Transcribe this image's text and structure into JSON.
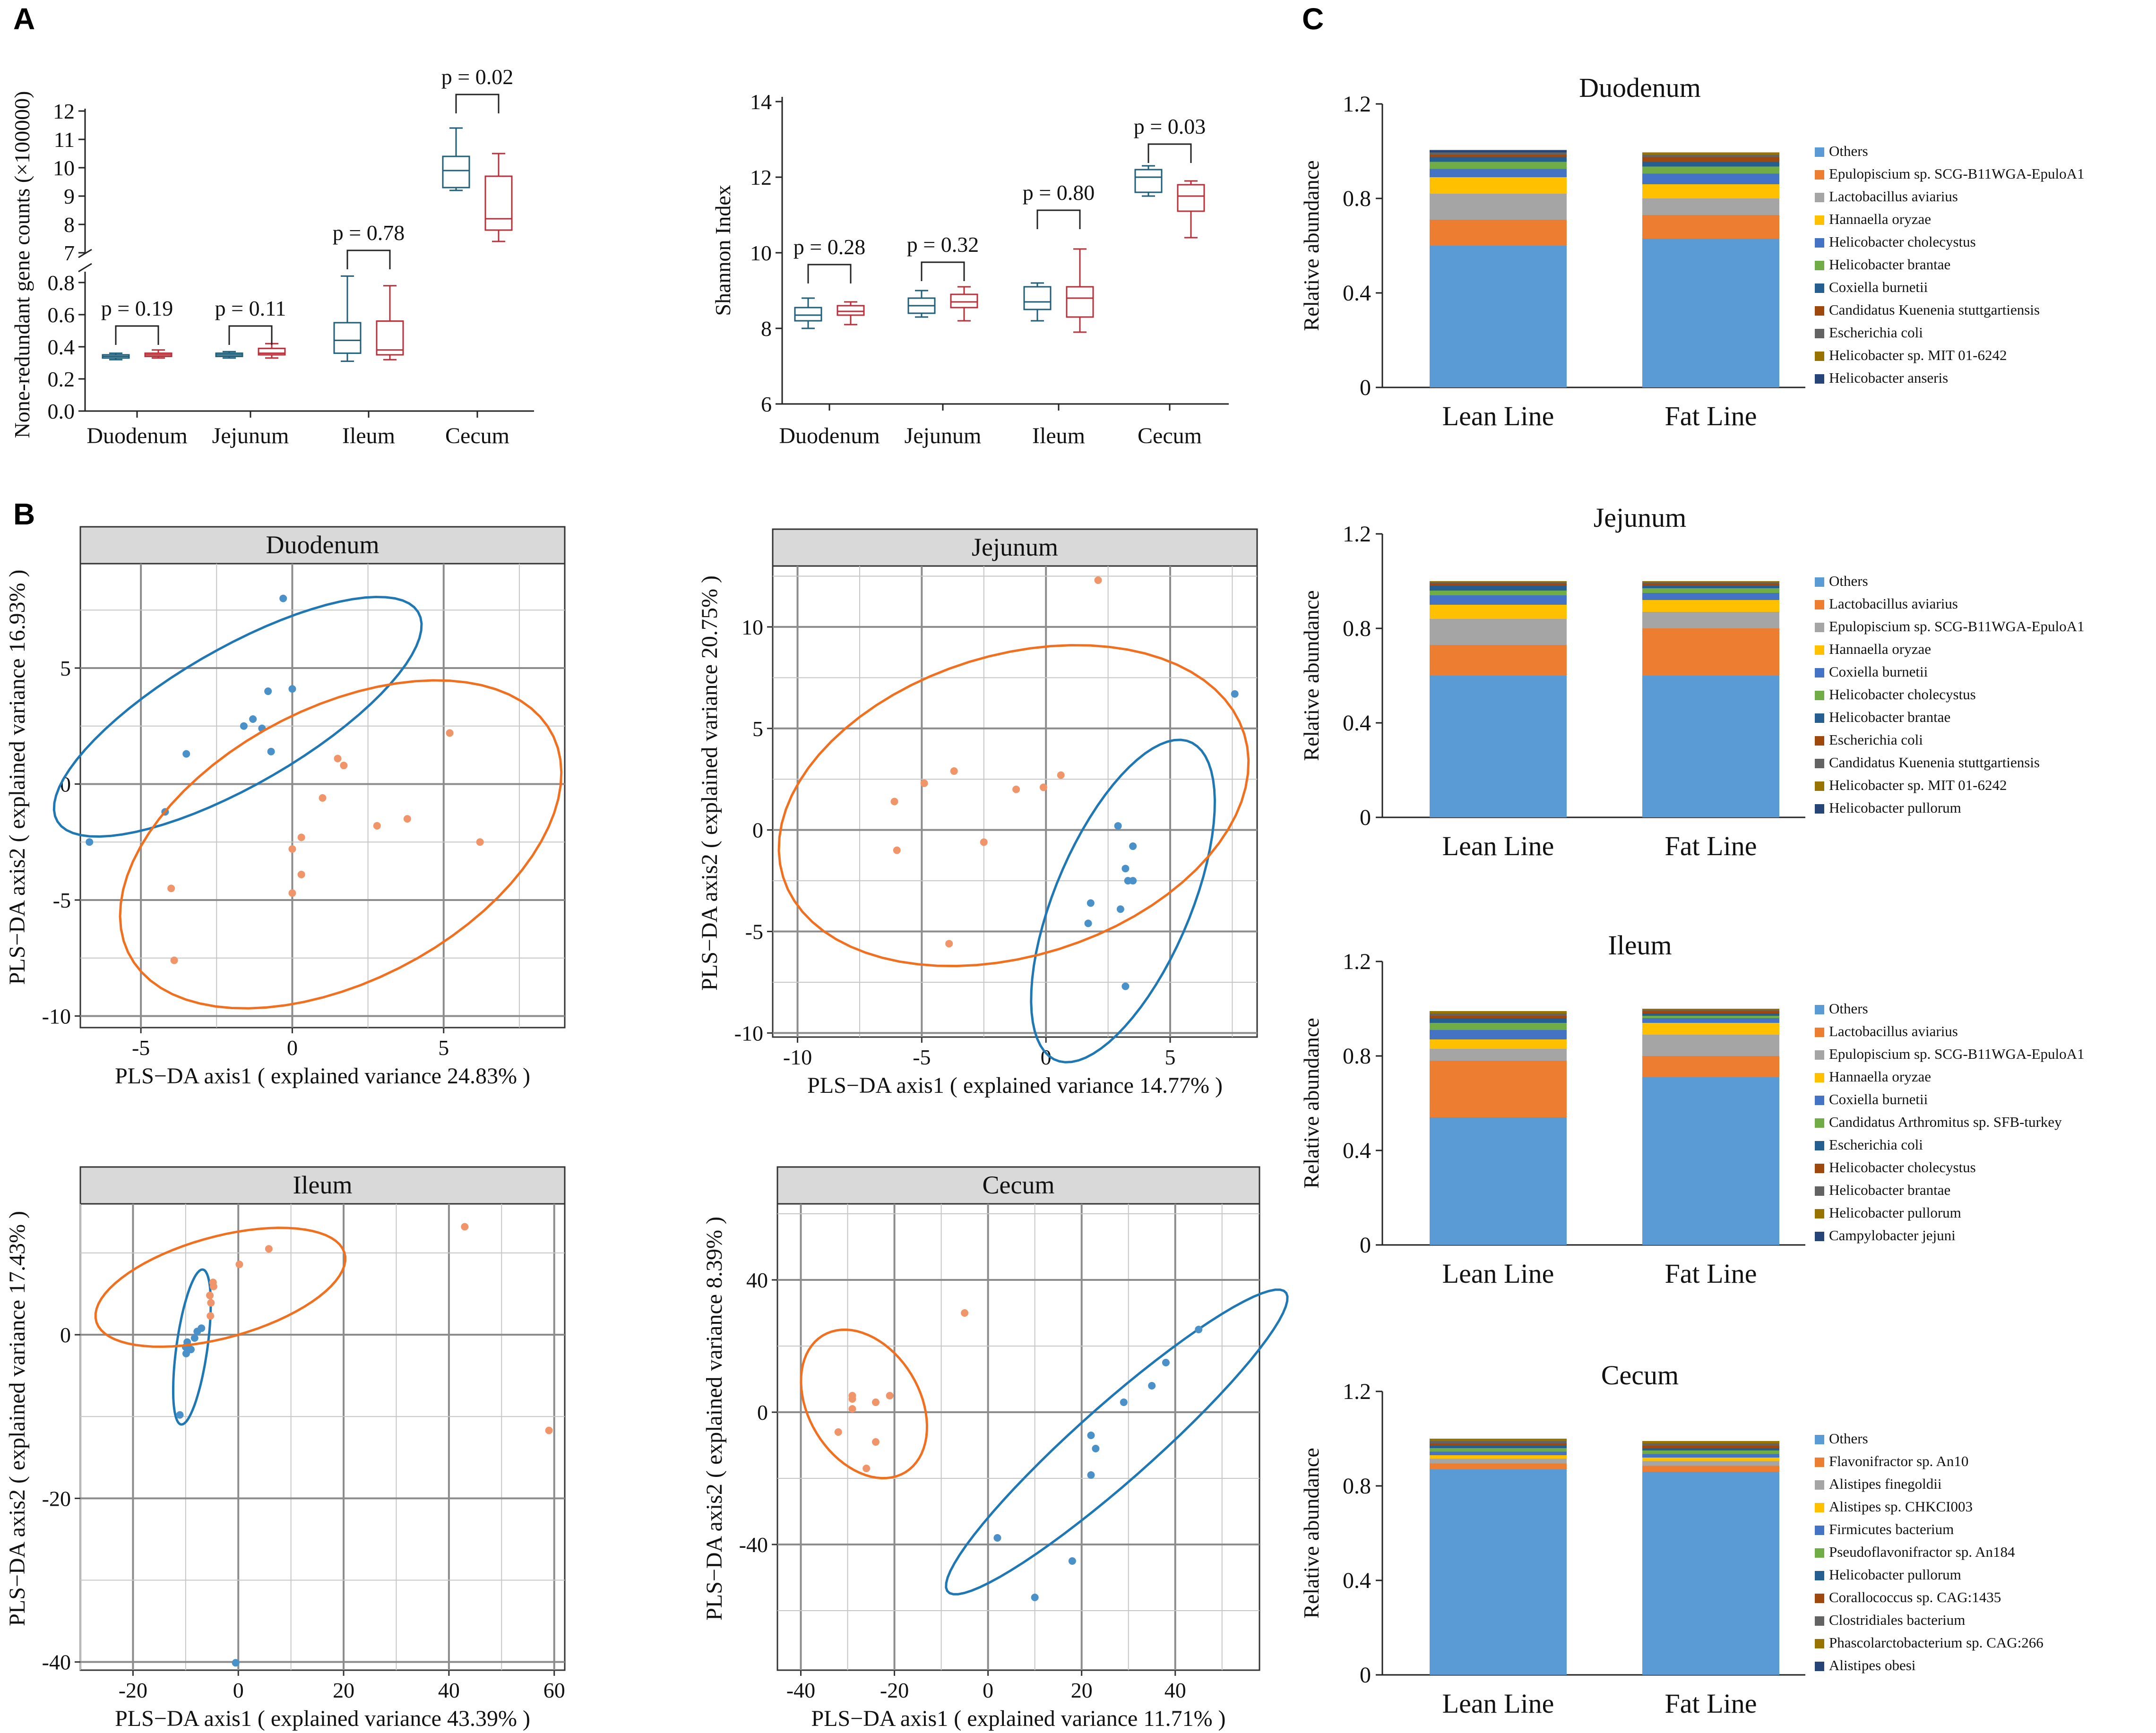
{
  "panel_labels": [
    "A",
    "B",
    "C"
  ],
  "colors": {
    "lean": "#1f5f7a",
    "fat": "#b8313a",
    "blue_pt": "#4a90c9",
    "orange_pt": "#f0956a",
    "blue_ell": "#1f77b4",
    "orange_ell": "#f07020"
  },
  "chart_data": [
    {
      "id": "gene_counts",
      "type": "boxplot",
      "ylabel": "None-redundant gene counts (×100000)",
      "categories": [
        "Duodenum",
        "Jejunum",
        "Ileum",
        "Cecum"
      ],
      "upper_axis": {
        "ylim": [
          7,
          12
        ],
        "ticks": [
          "7",
          "8",
          "9",
          "10",
          "11",
          "12"
        ]
      },
      "lower_axis": {
        "ylim": [
          0,
          0.9
        ],
        "ticks": [
          "0.0",
          "0.2",
          "0.4",
          "0.6",
          "0.8"
        ]
      },
      "series": [
        {
          "name": "Lean Line",
          "boxes": [
            [
              0.32,
              0.33,
              0.34,
              0.35,
              0.36
            ],
            [
              0.33,
              0.34,
              0.35,
              0.36,
              0.37
            ],
            [
              0.31,
              0.36,
              0.44,
              0.55,
              0.84
            ],
            [
              9.2,
              9.3,
              9.9,
              10.4,
              11.4
            ]
          ]
        },
        {
          "name": "Fat Line",
          "boxes": [
            [
              0.33,
              0.34,
              0.35,
              0.36,
              0.38
            ],
            [
              0.33,
              0.35,
              0.36,
              0.39,
              0.42
            ],
            [
              0.32,
              0.35,
              0.38,
              0.56,
              0.78
            ],
            [
              7.4,
              7.8,
              8.2,
              9.7,
              10.5
            ]
          ]
        }
      ],
      "pvalues": [
        "p = 0.19",
        "p = 0.11",
        "p = 0.78",
        "p = 0.02"
      ]
    },
    {
      "id": "shannon",
      "type": "boxplot",
      "ylabel": "Shannon Index",
      "categories": [
        "Duodenum",
        "Jejunum",
        "Ileum",
        "Cecum"
      ],
      "ylim": [
        6,
        14
      ],
      "ticks": [
        "6",
        "8",
        "10",
        "12",
        "14"
      ],
      "series": [
        {
          "name": "Lean Line",
          "boxes": [
            [
              8.0,
              8.2,
              8.35,
              8.55,
              8.8
            ],
            [
              8.3,
              8.4,
              8.6,
              8.8,
              9.0
            ],
            [
              8.2,
              8.5,
              8.7,
              9.1,
              9.2
            ],
            [
              11.5,
              11.6,
              12.0,
              12.2,
              12.3
            ]
          ]
        },
        {
          "name": "Fat Line",
          "boxes": [
            [
              8.1,
              8.35,
              8.45,
              8.6,
              8.7
            ],
            [
              8.2,
              8.55,
              8.7,
              8.9,
              9.1
            ],
            [
              7.9,
              8.3,
              8.8,
              9.1,
              10.1
            ],
            [
              10.4,
              11.1,
              11.5,
              11.8,
              11.9
            ]
          ]
        }
      ],
      "pvalues": [
        "p = 0.28",
        "p = 0.32",
        "p = 0.80",
        "p = 0.03"
      ]
    },
    {
      "id": "plsda_duodenum",
      "type": "scatter",
      "title": "Duodenum",
      "xlabel": "PLS−DA axis1 ( explained variance 24.83% )",
      "ylabel": "PLS−DA axis2 ( explained variance 16.93% )",
      "xlim": [
        -7,
        9
      ],
      "ylim": [
        -10.5,
        9.5
      ],
      "xticks": [
        "-5",
        "0",
        "5"
      ],
      "yticks": [
        "-10",
        "-5",
        "0",
        "5"
      ],
      "series": [
        {
          "name": "blue",
          "points": [
            [
              -0.3,
              8.0
            ],
            [
              -0.8,
              4.0
            ],
            [
              0,
              4.1
            ],
            [
              -1.3,
              2.8
            ],
            [
              -1.6,
              2.5
            ],
            [
              -1.0,
              2.4
            ],
            [
              -3.5,
              1.3
            ],
            [
              -0.7,
              1.4
            ],
            [
              -4.2,
              -1.2
            ],
            [
              -6.7,
              -2.5
            ]
          ],
          "ellipse": {
            "cx": -1.8,
            "cy": 2.9,
            "rx": 7.5,
            "ry": 2.7,
            "angle": 39
          }
        },
        {
          "name": "orange",
          "points": [
            [
              5.2,
              2.2
            ],
            [
              1.5,
              1.1
            ],
            [
              1.7,
              0.8
            ],
            [
              1.0,
              -0.6
            ],
            [
              3.8,
              -1.5
            ],
            [
              2.8,
              -1.8
            ],
            [
              0.3,
              -2.3
            ],
            [
              0,
              -2.8
            ],
            [
              6.2,
              -2.5
            ],
            [
              -4.0,
              -4.5
            ],
            [
              0.3,
              -3.9
            ],
            [
              0.0,
              -4.7
            ],
            [
              -3.9,
              -7.6
            ]
          ],
          "ellipse": {
            "cx": 1.6,
            "cy": -2.6,
            "rx": 8.6,
            "ry": 5.4,
            "angle": 43
          }
        }
      ]
    },
    {
      "id": "plsda_jejunum",
      "type": "scatter",
      "title": "Jejunum",
      "xlabel": "PLS−DA axis1 ( explained variance 14.77% )",
      "ylabel": "PLS−DA axis2 ( explained variance 20.75% )",
      "xlim": [
        -11,
        8.5
      ],
      "ylim": [
        -10.2,
        13
      ],
      "xticks": [
        "-10",
        "-5",
        "0",
        "5"
      ],
      "yticks": [
        "-10",
        "-5",
        "0",
        "5",
        "10"
      ],
      "series": [
        {
          "name": "blue",
          "points": [
            [
              7.6,
              6.7
            ],
            [
              2.9,
              0.2
            ],
            [
              3.5,
              -0.8
            ],
            [
              3.2,
              -1.9
            ],
            [
              3.3,
              -2.5
            ],
            [
              3.5,
              -2.5
            ],
            [
              1.8,
              -3.6
            ],
            [
              3.0,
              -3.9
            ],
            [
              1.7,
              -4.6
            ],
            [
              3.2,
              -7.7
            ]
          ],
          "ellipse": {
            "cx": 3.1,
            "cy": -3.5,
            "rx": 8.3,
            "ry": 2.8,
            "angle": 72
          }
        },
        {
          "name": "orange",
          "points": [
            [
              2.1,
              12.3
            ],
            [
              -6.1,
              1.4
            ],
            [
              -4.9,
              2.3
            ],
            [
              -3.7,
              2.9
            ],
            [
              -1.2,
              2.0
            ],
            [
              -0.1,
              2.1
            ],
            [
              0.6,
              2.7
            ],
            [
              -6.0,
              -1.0
            ],
            [
              -2.5,
              -0.6
            ],
            [
              -3.9,
              -5.6
            ]
          ],
          "ellipse": {
            "cx": -1.3,
            "cy": 1.2,
            "rx": 10.0,
            "ry": 7.2,
            "angle": 28
          }
        }
      ]
    },
    {
      "id": "plsda_ileum",
      "type": "scatter",
      "title": "Ileum",
      "xlabel": "PLS−DA axis1 ( explained variance 43.39% )",
      "ylabel": "PLS−DA axis2 ( explained variance 17.43% )",
      "xlim": [
        -30,
        62
      ],
      "ylim": [
        -41,
        16
      ],
      "xticks": [
        "-20",
        "0",
        "20",
        "40",
        "60"
      ],
      "yticks": [
        "-40",
        "-20",
        "0"
      ],
      "series": [
        {
          "name": "blue",
          "points": [
            [
              -7.0,
              0.8
            ],
            [
              -7.8,
              0.4
            ],
            [
              -8.3,
              -0.4
            ],
            [
              -9.7,
              -0.9
            ],
            [
              -10.0,
              -1.5
            ],
            [
              -9.0,
              -1.8
            ],
            [
              -9.9,
              -2.3
            ],
            [
              -11.1,
              -9.8
            ],
            [
              -0.5,
              -40.1
            ]
          ],
          "ellipse": {
            "cx": -8.8,
            "cy": -1.5,
            "rx": 9.7,
            "ry": 2.9,
            "angle": 77
          }
        },
        {
          "name": "orange",
          "points": [
            [
              43.0,
              13.2
            ],
            [
              5.8,
              10.5
            ],
            [
              0.2,
              8.6
            ],
            [
              -4.8,
              6.4
            ],
            [
              -4.7,
              5.9
            ],
            [
              -5.4,
              4.8
            ],
            [
              -5.2,
              3.9
            ],
            [
              -5.3,
              2.3
            ],
            [
              59.0,
              -11.7
            ]
          ],
          "ellipse": {
            "cx": -3.4,
            "cy": 5.8,
            "rx": 24.0,
            "ry": 6.3,
            "angle": 9
          }
        }
      ]
    },
    {
      "id": "plsda_cecum",
      "type": "scatter",
      "title": "Cecum",
      "xlabel": "PLS−DA axis1 ( explained variance 11.71% )",
      "ylabel": "PLS−DA axis2 ( explained variance 8.39% )",
      "xlim": [
        -45,
        58
      ],
      "ylim": [
        -78,
        63
      ],
      "xticks": [
        "-40",
        "-20",
        "0",
        "20",
        "40"
      ],
      "yticks": [
        "-40",
        "0",
        "40"
      ],
      "series": [
        {
          "name": "blue",
          "points": [
            [
              45,
              25
            ],
            [
              38,
              15
            ],
            [
              35,
              8
            ],
            [
              29,
              3
            ],
            [
              22,
              -7
            ],
            [
              23,
              -11
            ],
            [
              22,
              -19
            ],
            [
              2,
              -38
            ],
            [
              18,
              -45
            ],
            [
              10,
              -56
            ]
          ],
          "ellipse": {
            "cx": 27.5,
            "cy": -9.0,
            "rx": 58.0,
            "ry": 9.5,
            "angle": 52
          }
        },
        {
          "name": "orange",
          "points": [
            [
              -5,
              30
            ],
            [
              -29,
              5
            ],
            [
              -29,
              4
            ],
            [
              -21,
              5
            ],
            [
              -24,
              3
            ],
            [
              -29,
              1
            ],
            [
              -32,
              -6
            ],
            [
              -24,
              -9
            ],
            [
              -26,
              -17
            ]
          ],
          "ellipse": {
            "cx": -26.5,
            "cy": 2.5,
            "rx": 23.0,
            "ry": 12.5,
            "angle": 105
          }
        }
      ]
    },
    {
      "id": "abund_duodenum",
      "type": "stacked_bar",
      "title": "Duodenum",
      "ylabel": "Relative abundance",
      "ylim": [
        0,
        1.2
      ],
      "yticks": [
        "0",
        "0.4",
        "0.8",
        "1.2"
      ],
      "categories": [
        "Lean Line",
        "Fat Line"
      ],
      "legend": [
        "Others",
        "Epulopiscium sp. SCG-B11WGA-EpuloA1",
        "Lactobacillus aviarius",
        "Hannaella oryzae",
        "Helicobacter cholecystus",
        "Helicobacter brantae",
        "Coxiella burnetii",
        "Candidatus Kuenenia stuttgartiensis",
        "Escherichia coli",
        "Helicobacter sp. MIT 01-6242",
        "Helicobacter anseris"
      ],
      "series_values": [
        [
          0.6,
          0.63
        ],
        [
          0.11,
          0.1
        ],
        [
          0.11,
          0.07
        ],
        [
          0.07,
          0.06
        ],
        [
          0.035,
          0.045
        ],
        [
          0.03,
          0.03
        ],
        [
          0.02,
          0.02
        ],
        [
          0.01,
          0.02
        ],
        [
          0.01,
          0.01
        ],
        [
          0.0,
          0.01
        ],
        [
          0.01,
          0.0
        ]
      ]
    },
    {
      "id": "abund_jejunum",
      "type": "stacked_bar",
      "title": "Jejunum",
      "ylabel": "Relative abundance",
      "ylim": [
        0,
        1.2
      ],
      "yticks": [
        "0",
        "0.4",
        "0.8",
        "1.2"
      ],
      "categories": [
        "Lean Line",
        "Fat Line"
      ],
      "legend": [
        "Others",
        "Lactobacillus aviarius",
        "Epulopiscium sp. SCG-B11WGA-EpuloA1",
        "Hannaella oryzae",
        "Coxiella burnetii",
        "Helicobacter cholecystus",
        "Helicobacter brantae",
        "Escherichia coli",
        "Candidatus Kuenenia stuttgartiensis",
        "Helicobacter sp. MIT 01-6242",
        "Helicobacter pullorum"
      ],
      "series_values": [
        [
          0.6,
          0.6
        ],
        [
          0.13,
          0.2
        ],
        [
          0.11,
          0.07
        ],
        [
          0.06,
          0.05
        ],
        [
          0.04,
          0.03
        ],
        [
          0.02,
          0.02
        ],
        [
          0.02,
          0.01
        ],
        [
          0.01,
          0.01
        ],
        [
          0.005,
          0.005
        ],
        [
          0.005,
          0.005
        ],
        [
          0.0,
          0.0
        ]
      ]
    },
    {
      "id": "abund_ileum",
      "type": "stacked_bar",
      "title": "Ileum",
      "ylabel": "Relative abundance",
      "ylim": [
        0,
        1.2
      ],
      "yticks": [
        "0",
        "0.4",
        "0.8",
        "1.2"
      ],
      "categories": [
        "Lean Line",
        "Fat Line"
      ],
      "legend": [
        "Others",
        "Lactobacillus aviarius",
        "Epulopiscium sp. SCG-B11WGA-EpuloA1",
        "Hannaella oryzae",
        "Coxiella burnetii",
        "Candidatus Arthromitus sp. SFB-turkey",
        "Escherichia coli",
        "Helicobacter cholecystus",
        "Helicobacter brantae",
        "Helicobacter pullorum",
        "Campylobacter jejuni"
      ],
      "series_values": [
        [
          0.54,
          0.71
        ],
        [
          0.24,
          0.09
        ],
        [
          0.05,
          0.09
        ],
        [
          0.04,
          0.05
        ],
        [
          0.04,
          0.02
        ],
        [
          0.03,
          0.01
        ],
        [
          0.02,
          0.01
        ],
        [
          0.01,
          0.01
        ],
        [
          0.01,
          0.005
        ],
        [
          0.01,
          0.005
        ],
        [
          0.0,
          0.0
        ]
      ]
    },
    {
      "id": "abund_cecum",
      "type": "stacked_bar",
      "title": "Cecum",
      "ylabel": "Relative abundance",
      "ylim": [
        0,
        1.2
      ],
      "yticks": [
        "0",
        "0.4",
        "0.8",
        "1.2"
      ],
      "categories": [
        "Lean Line",
        "Fat Line"
      ],
      "legend": [
        "Others",
        "Flavonifractor sp. An10",
        "Alistipes finegoldii",
        "Alistipes sp. CHKCI003",
        "Firmicutes bacterium",
        "Pseudoflavonifractor sp. An184",
        "Helicobacter pullorum",
        "Corallococcus sp. CAG:1435",
        "Clostridiales bacterium",
        "Phascolarctobacterium sp. CAG:266",
        "Alistipes obesi"
      ],
      "series_values": [
        [
          0.87,
          0.86
        ],
        [
          0.025,
          0.025
        ],
        [
          0.02,
          0.02
        ],
        [
          0.015,
          0.015
        ],
        [
          0.015,
          0.015
        ],
        [
          0.015,
          0.015
        ],
        [
          0.01,
          0.01
        ],
        [
          0.01,
          0.01
        ],
        [
          0.01,
          0.01
        ],
        [
          0.01,
          0.01
        ],
        [
          0.0,
          0.0
        ]
      ]
    }
  ],
  "stack_colors": [
    "#5b9bd5",
    "#ed7d31",
    "#a5a5a5",
    "#ffc000",
    "#4472c4",
    "#70ad47",
    "#255e91",
    "#9e480e",
    "#636363",
    "#997300",
    "#264478"
  ]
}
